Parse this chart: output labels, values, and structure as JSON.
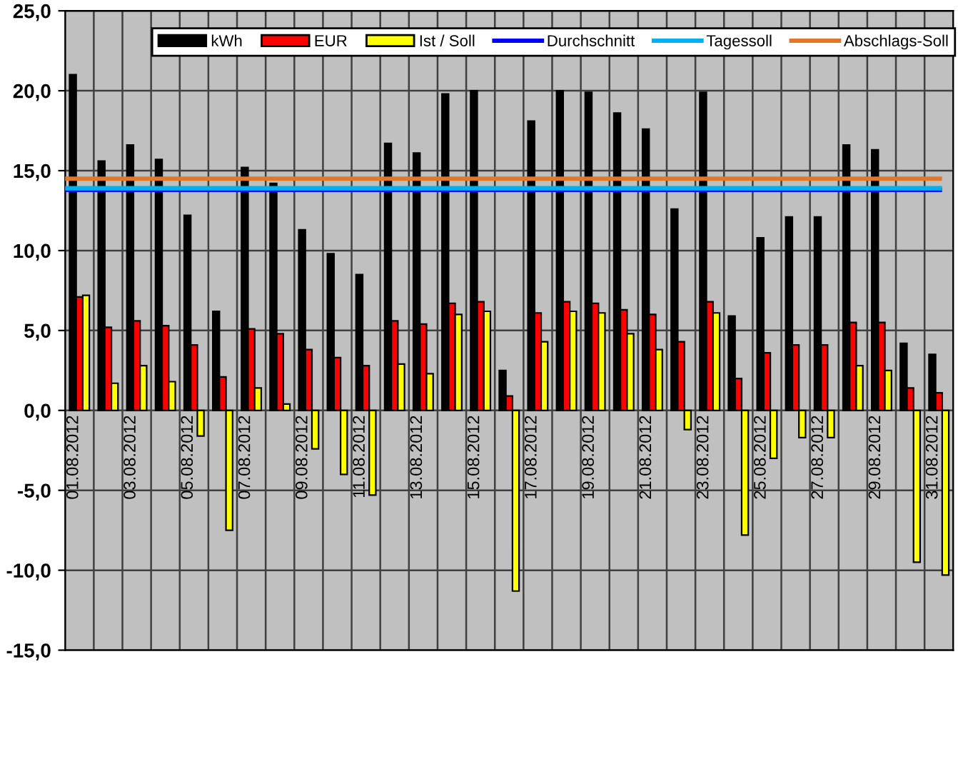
{
  "chart_data": {
    "type": "bar",
    "categories": [
      "01.08.2012",
      null,
      "03.08.2012",
      null,
      "05.08.2012",
      null,
      "07.08.2012",
      null,
      "09.08.2012",
      null,
      "11.08.2012",
      null,
      "13.08.2012",
      null,
      "15.08.2012",
      null,
      "17.08.2012",
      null,
      "19.08.2012",
      null,
      "21.08.2012",
      null,
      "23.08.2012",
      null,
      "25.08.2012",
      null,
      "27.08.2012",
      null,
      "29.08.2012",
      null,
      "31.08.2012"
    ],
    "series": [
      {
        "name": "kWh",
        "color": "#000000",
        "values": [
          21.0,
          15.6,
          16.6,
          15.7,
          12.2,
          6.2,
          15.2,
          14.2,
          11.3,
          9.8,
          8.5,
          16.7,
          16.1,
          19.8,
          20.0,
          2.5,
          18.1,
          20.0,
          19.9,
          18.6,
          17.6,
          12.6,
          19.9,
          5.9,
          10.8,
          12.1,
          12.1,
          16.6,
          16.3,
          4.2,
          3.5
        ]
      },
      {
        "name": "EUR",
        "color": "#ff0000",
        "values": [
          7.1,
          5.2,
          5.6,
          5.3,
          4.1,
          2.1,
          5.1,
          4.8,
          3.8,
          3.3,
          2.8,
          5.6,
          5.4,
          6.7,
          6.8,
          0.9,
          6.1,
          6.8,
          6.7,
          6.3,
          6.0,
          4.3,
          6.8,
          2.0,
          3.6,
          4.1,
          4.1,
          5.5,
          5.5,
          1.4,
          1.1
        ]
      },
      {
        "name": "Ist / Soll",
        "color": "#ffff00",
        "values": [
          7.2,
          1.7,
          2.8,
          1.8,
          -1.6,
          -7.5,
          1.4,
          0.4,
          -2.4,
          -4.0,
          -5.3,
          2.9,
          2.3,
          6.0,
          6.2,
          -11.3,
          4.3,
          6.2,
          6.1,
          4.8,
          3.8,
          -1.2,
          6.1,
          -7.8,
          -3.0,
          -1.7,
          -1.7,
          2.8,
          2.5,
          -9.5,
          -10.3
        ]
      }
    ],
    "ref_lines": [
      {
        "axis": "y",
        "value": 13.8,
        "label": "Durchschnitt",
        "color": "#0000ff"
      },
      {
        "axis": "y",
        "value": 13.9,
        "label": "Tagessoll",
        "color": "#00b0f0"
      },
      {
        "axis": "y",
        "value": 14.5,
        "label": "Abschlags-Soll",
        "color": "#e07828"
      }
    ],
    "ylim": [
      -15,
      25
    ],
    "yticks": [
      {
        "value": -15,
        "label": "-15,0"
      },
      {
        "value": -10,
        "label": "-10,0"
      },
      {
        "value": -5,
        "label": "-5,0"
      },
      {
        "value": 0,
        "label": "0,0"
      },
      {
        "value": 5,
        "label": "5,0"
      },
      {
        "value": 10,
        "label": "10,0"
      },
      {
        "value": 15,
        "label": "15,0"
      },
      {
        "value": 20,
        "label": "20,0"
      },
      {
        "value": 25,
        "label": "25,0"
      }
    ],
    "grid": true,
    "legend": "top"
  }
}
